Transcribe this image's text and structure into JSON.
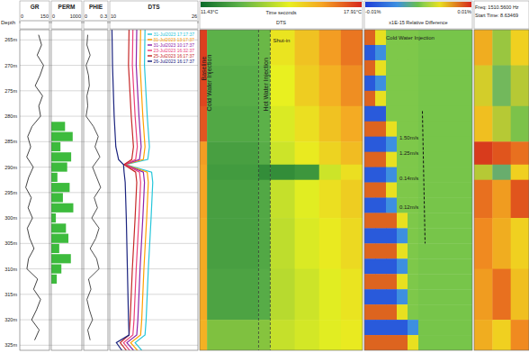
{
  "chart_data": [
    {
      "type": "depth",
      "title": "Depth",
      "ylim": [
        263,
        326
      ],
      "grid": true,
      "yticks": [
        {
          "value": 265,
          "label": "265m"
        },
        {
          "value": 270,
          "label": "270m"
        },
        {
          "value": 275,
          "label": "275m"
        },
        {
          "value": 280,
          "label": "280m"
        },
        {
          "value": 285,
          "label": "285m"
        },
        {
          "value": 290,
          "label": "290m"
        },
        {
          "value": 295,
          "label": "295m"
        },
        {
          "value": 300,
          "label": "300m"
        },
        {
          "value": 305,
          "label": "305m"
        },
        {
          "value": 310,
          "label": "310m"
        },
        {
          "value": 315,
          "label": "315m"
        },
        {
          "value": 320,
          "label": "320m"
        },
        {
          "value": 325,
          "label": "325m"
        }
      ]
    },
    {
      "type": "line",
      "title": "GR",
      "xlim": [
        0,
        150
      ],
      "xticks": [
        0,
        150
      ],
      "color": "#111111",
      "y": [
        264,
        266,
        268,
        270,
        272,
        274,
        276,
        278,
        280,
        282,
        284,
        286,
        288,
        290,
        292,
        294,
        296,
        298,
        300,
        302,
        304,
        306,
        308,
        310,
        312,
        314,
        316,
        318,
        320,
        322,
        324
      ],
      "values": [
        95,
        110,
        88,
        120,
        102,
        78,
        115,
        96,
        105,
        62,
        40,
        55,
        35,
        68,
        45,
        30,
        58,
        42,
        64,
        38,
        50,
        72,
        44,
        36,
        90,
        70,
        105,
        85,
        60,
        98,
        75
      ]
    },
    {
      "type": "bar",
      "orientation": "horizontal",
      "title": "PERM",
      "xlim": [
        0,
        1000
      ],
      "xticks": [
        0,
        1000
      ],
      "color": "#3dbb3d",
      "y": [
        282,
        284,
        286,
        288,
        290,
        292,
        294,
        296,
        298,
        300,
        302,
        304,
        306,
        308,
        310,
        312
      ],
      "values": [
        450,
        700,
        300,
        650,
        520,
        200,
        600,
        380,
        720,
        150,
        480,
        560,
        260,
        640,
        330,
        180
      ]
    },
    {
      "type": "line",
      "title": "PHIE",
      "xlim": [
        0,
        0.3
      ],
      "xticks": [
        0,
        0.3
      ],
      "color": "#222222",
      "y": [
        264,
        266,
        268,
        270,
        272,
        274,
        276,
        278,
        280,
        282,
        284,
        286,
        288,
        290,
        292,
        294,
        296,
        298,
        300,
        302,
        304,
        306,
        308,
        310,
        312,
        314,
        316,
        318,
        320,
        322,
        324
      ],
      "values": [
        0.05,
        0.04,
        0.08,
        0.03,
        0.06,
        0.07,
        0.04,
        0.05,
        0.03,
        0.12,
        0.18,
        0.14,
        0.2,
        0.11,
        0.16,
        0.21,
        0.13,
        0.17,
        0.1,
        0.19,
        0.15,
        0.08,
        0.16,
        0.19,
        0.06,
        0.09,
        0.04,
        0.07,
        0.11,
        0.05,
        0.08
      ]
    },
    {
      "type": "line",
      "title": "DTS",
      "xlim": [
        10,
        26
      ],
      "xticks": [
        10,
        26
      ],
      "legend": "top-right",
      "y": [
        263,
        270,
        280,
        286,
        288.5,
        289.5,
        291,
        293,
        300,
        310,
        320,
        323,
        324.5,
        326
      ],
      "series": [
        {
          "name": "31-Jul2023 17:17:37",
          "color": "#26c6da",
          "values": [
            16.4,
            16.3,
            16.8,
            17.2,
            16.9,
            12.9,
            17.6,
            17.8,
            17.5,
            17.0,
            16.6,
            16.4,
            14.6,
            15.8
          ]
        },
        {
          "name": "31-Jul2023 13:17:37",
          "color": "#ffa000",
          "values": [
            15.6,
            15.5,
            16.0,
            16.4,
            16.1,
            12.8,
            16.8,
            17.0,
            16.7,
            16.2,
            15.8,
            15.6,
            13.8,
            15.0
          ]
        },
        {
          "name": "31-Jul2023 10:17:37",
          "color": "#8e24aa",
          "values": [
            14.9,
            14.8,
            15.3,
            15.7,
            15.4,
            12.7,
            16.1,
            16.3,
            16.0,
            15.5,
            15.1,
            14.9,
            13.1,
            14.3
          ]
        },
        {
          "name": "23-Jul2023 16:32:37",
          "color": "#ec407a",
          "values": [
            14.2,
            14.1,
            14.6,
            15.0,
            14.7,
            12.7,
            15.4,
            15.6,
            15.3,
            14.8,
            14.4,
            14.2,
            12.5,
            13.6
          ]
        },
        {
          "name": "25-Jul2023 16:17:37",
          "color": "#c62828",
          "values": [
            13.5,
            13.4,
            13.9,
            14.3,
            14.0,
            12.6,
            14.7,
            14.9,
            14.6,
            14.1,
            13.7,
            13.5,
            11.9,
            13.0
          ]
        },
        {
          "name": "26-Jul2023 16:17:37",
          "color": "#1a237e",
          "values": [
            10.4,
            10.5,
            10.8,
            11.1,
            11.6,
            12.5,
            12.6,
            12.8,
            13.0,
            13.2,
            13.4,
            13.5,
            11.2,
            12.2
          ]
        }
      ]
    },
    {
      "type": "heatmap",
      "title": "DTS",
      "subtitle": "Time seconds",
      "xlim": [
        0,
        60
      ],
      "x": [
        0,
        2.7,
        21.7,
        26,
        35,
        44,
        52,
        60
      ],
      "y": [
        263,
        270,
        278,
        285,
        289.5,
        292.5,
        300,
        310,
        320,
        326
      ],
      "values": [
        [
          17.6,
          13.0,
          13.2,
          15.2,
          15.8,
          16.4,
          16.9
        ],
        [
          17.5,
          12.9,
          13.1,
          15.0,
          15.6,
          16.1,
          16.6
        ],
        [
          17.3,
          12.8,
          13.0,
          14.8,
          15.3,
          15.8,
          16.2
        ],
        [
          16.4,
          12.6,
          12.9,
          14.6,
          15.1,
          15.5,
          15.9
        ],
        [
          16.3,
          12.5,
          12.2,
          12.2,
          12.4,
          14.6,
          15.3
        ],
        [
          16.3,
          12.6,
          12.8,
          14.5,
          14.9,
          15.3,
          15.6
        ],
        [
          16.2,
          12.6,
          12.8,
          14.4,
          14.8,
          15.1,
          15.4
        ],
        [
          16.2,
          12.7,
          12.9,
          14.3,
          14.6,
          14.9,
          15.2
        ],
        [
          16.1,
          13.5,
          13.6,
          14.5,
          14.7,
          14.9,
          15.1
        ]
      ],
      "colorbar_range": [
        11.43,
        17.91
      ],
      "colorbar_ticks": [
        {
          "value": 11.43,
          "label": "11.43°C"
        },
        {
          "value": 17.91,
          "label": "17.91°C"
        }
      ],
      "event_lines": [
        21.7,
        26
      ],
      "annotations": [
        {
          "text": "Baseline",
          "x": 2.3,
          "y": 273
        },
        {
          "text": "Cold Water Injection",
          "x": 4.2,
          "y": 279
        },
        {
          "text": "Hot Water Injection",
          "x": 25.3,
          "y": 279
        },
        {
          "text": "Shut-in",
          "x": 27,
          "y": 265.5,
          "orientation": "horizontal"
        }
      ]
    },
    {
      "type": "heatmap",
      "title": "x1E-15 Relative Difference",
      "xlim": [
        0,
        40
      ],
      "x": [
        0,
        4,
        8,
        12,
        16,
        20,
        40
      ],
      "y": [
        263,
        266,
        269,
        272,
        275,
        278,
        281,
        284,
        287,
        290,
        293,
        296,
        299,
        302,
        305,
        308,
        311,
        314,
        317,
        320,
        323,
        326
      ],
      "values": [
        [
          0.008,
          0.004,
          0.0005,
          0.0005,
          0.0005,
          0.0003
        ],
        [
          -0.008,
          -0.004,
          0.0005,
          0.0005,
          0.0005,
          0.0003
        ],
        [
          0.008,
          0.004,
          0.0005,
          0.0005,
          0.0005,
          0.0003
        ],
        [
          -0.008,
          -0.004,
          0.0005,
          0.0005,
          0.0005,
          0.0003
        ],
        [
          0.008,
          0.004,
          0.0005,
          0.0005,
          0.0005,
          0.0003
        ],
        [
          -0.008,
          -0.008,
          0.0005,
          0.0005,
          0.0005,
          0.0003
        ],
        [
          0.008,
          0.008,
          0.004,
          0.0005,
          0.0005,
          0.0003
        ],
        [
          -0.008,
          -0.008,
          -0.004,
          0.0005,
          0.0005,
          0.0003
        ],
        [
          0.008,
          0.008,
          0.004,
          0.0005,
          0.0005,
          0.0003
        ],
        [
          -0.008,
          -0.008,
          -0.004,
          0.0005,
          0.0005,
          0.0003
        ],
        [
          0.008,
          0.008,
          0.004,
          0.0005,
          0.0005,
          0.0003
        ],
        [
          -0.008,
          -0.008,
          -0.004,
          0.0005,
          0.0005,
          0.0003
        ],
        [
          0.008,
          0.008,
          0.008,
          0.004,
          0.0005,
          0.0003
        ],
        [
          -0.008,
          -0.008,
          -0.008,
          -0.004,
          0.0005,
          0.0003
        ],
        [
          0.008,
          0.008,
          0.008,
          0.004,
          0.0005,
          0.0003
        ],
        [
          -0.008,
          -0.008,
          -0.008,
          -0.004,
          0.0005,
          0.0003
        ],
        [
          0.008,
          0.008,
          0.008,
          0.004,
          0.0005,
          0.0003
        ],
        [
          -0.008,
          -0.008,
          -0.008,
          -0.004,
          0.0005,
          0.0003
        ],
        [
          0.008,
          0.008,
          0.008,
          0.004,
          0.0005,
          0.0003
        ],
        [
          -0.008,
          -0.008,
          -0.008,
          -0.008,
          -0.004,
          0.0003
        ],
        [
          0.008,
          0.008,
          0.008,
          0.008,
          0.004,
          0.0003
        ]
      ],
      "colorbar_range": [
        -0.01,
        0.01
      ],
      "colorbar_ticks": [
        {
          "value": -0.01,
          "label": "-0.01%"
        },
        {
          "value": 0.01,
          "label": "0.01%"
        }
      ],
      "velocity_line": {
        "x": [
          21.5,
          22.5
        ],
        "y": [
          279,
          305
        ]
      },
      "annotations": [
        {
          "text": "Cold Water Injection",
          "x": 8,
          "y": 265,
          "orientation": "horizontal"
        },
        {
          "text": "1.50m/s",
          "x": 13,
          "y": 284.6,
          "orientation": "horizontal"
        },
        {
          "text": "1.25m/s",
          "x": 13,
          "y": 287.6,
          "orientation": "horizontal"
        },
        {
          "text": "0.14m/s",
          "x": 13,
          "y": 292.6,
          "orientation": "horizontal"
        },
        {
          "text": "0.12m/s",
          "x": 13,
          "y": 298.2,
          "orientation": "horizontal"
        }
      ]
    },
    {
      "type": "heatmap",
      "title": "Freq: 1510.5600 Hz",
      "subtitle": "Start Time: 8.63469",
      "xlim": [
        0,
        3
      ],
      "x": [
        0,
        1,
        2,
        3
      ],
      "y": [
        263,
        270,
        278,
        285,
        289.5,
        292.5,
        300,
        310,
        320,
        326
      ],
      "values": [
        [
          0.7,
          0.45,
          0.6
        ],
        [
          0.55,
          0.35,
          0.5
        ],
        [
          0.65,
          0.5,
          0.4
        ],
        [
          0.95,
          0.9,
          0.85
        ],
        [
          0.5,
          0.3,
          0.6
        ],
        [
          0.85,
          0.75,
          0.9
        ],
        [
          0.8,
          0.7,
          0.6
        ],
        [
          0.75,
          0.85,
          0.65
        ],
        [
          0.7,
          0.6,
          0.8
        ]
      ],
      "colorbar_range": [
        0,
        1
      ]
    }
  ]
}
